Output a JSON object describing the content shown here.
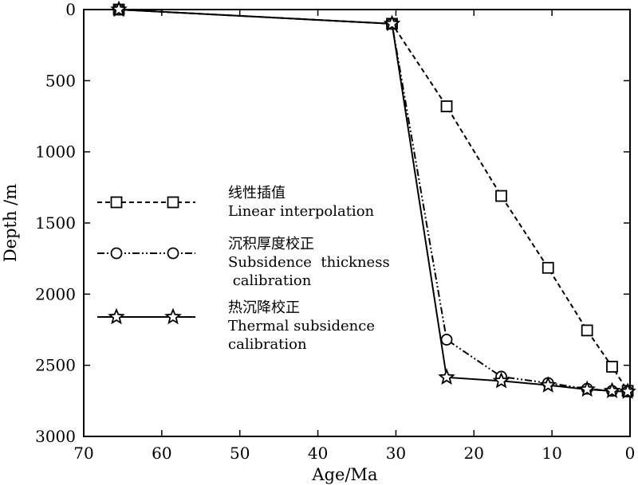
{
  "chart_data": {
    "type": "line",
    "xlabel": "Age/Ma",
    "ylabel": "Depth /m",
    "xlim": [
      70,
      0
    ],
    "ylim": [
      0,
      3000
    ],
    "y_inverted": true,
    "x_ticks": [
      70,
      60,
      50,
      40,
      30,
      20,
      10,
      0
    ],
    "y_ticks": [
      0,
      500,
      1000,
      1500,
      2000,
      2500,
      3000
    ],
    "grid": false,
    "legend_position": "left-center",
    "series": [
      {
        "name_lines": [
          "线性插值",
          "Linear interpolation"
        ],
        "marker": "square",
        "line_style": "dashed",
        "color": "#000000",
        "x": [
          65.5,
          30.5,
          23.5,
          16.5,
          10.5,
          5.5,
          2.3,
          0.3
        ],
        "y": [
          0,
          100,
          680,
          1310,
          1815,
          2255,
          2510,
          2680
        ]
      },
      {
        "name_lines": [
          "沉积厚度校正",
          "Subsidence  thickness",
          " calibration"
        ],
        "marker": "circle",
        "line_style": "dash-dot-dot",
        "color": "#000000",
        "x": [
          65.5,
          30.5,
          23.5,
          16.5,
          10.5,
          5.5,
          2.3,
          0.3
        ],
        "y": [
          0,
          100,
          2320,
          2580,
          2625,
          2665,
          2680,
          2685
        ]
      },
      {
        "name_lines": [
          "热沉降校正",
          "Thermal subsidence",
          "calibration"
        ],
        "marker": "star",
        "line_style": "solid",
        "color": "#000000",
        "x": [
          65.5,
          30.5,
          23.5,
          16.5,
          10.5,
          5.5,
          2.3,
          0.3
        ],
        "y": [
          0,
          100,
          2585,
          2610,
          2640,
          2670,
          2680,
          2685
        ]
      }
    ]
  }
}
